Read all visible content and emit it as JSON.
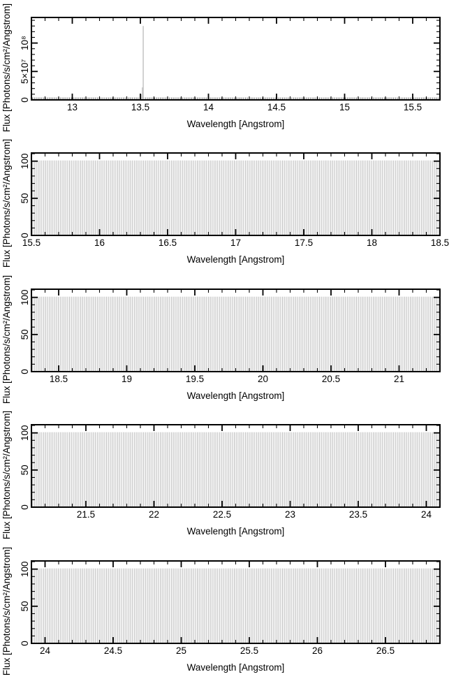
{
  "figure": {
    "background": "#ffffff",
    "frame_color": "#000000",
    "comb_color": "#c0c0c0",
    "comb_strip_color": "#7d7d7d",
    "text_color": "#000000",
    "panel_count": 5
  },
  "chart_data": [
    {
      "type": "line-spectrum",
      "xlabel": "Wavelength [Angstrom]",
      "ylabel": "Flux [Photons/s/cm²/Angstrom]",
      "xlim": [
        12.7,
        15.7
      ],
      "xticks": [
        {
          "value": 13,
          "label": "13"
        },
        {
          "value": 13.5,
          "label": "13.5"
        },
        {
          "value": 14,
          "label": "14"
        },
        {
          "value": 14.5,
          "label": "14.5"
        },
        {
          "value": 15,
          "label": "15"
        },
        {
          "value": 15.5,
          "label": "15.5"
        }
      ],
      "xtick_minor_step": 0.1,
      "ylim": [
        0,
        145000000
      ],
      "yticks": [
        {
          "value": 0,
          "label": "0"
        },
        {
          "value": 50000000,
          "label": "5×10⁷"
        },
        {
          "value": 100000000,
          "label": "10⁸"
        }
      ],
      "ytick_minor_step": 10000000,
      "grid": false,
      "comb": {
        "height": 100,
        "spacing_angstrom": 0.0136
      },
      "emission_lines": [
        {
          "wavelength": 13.5,
          "flux": 5000000
        },
        {
          "wavelength": 13.506,
          "flux": 10000000
        },
        {
          "wavelength": 13.515,
          "flux": 22000000
        },
        {
          "wavelength": 13.521,
          "flux": 130000000
        }
      ]
    },
    {
      "type": "line-spectrum",
      "xlabel": "Wavelength [Angstrom]",
      "ylabel": "Flux [Photons/s/cm²/Angstrom]",
      "xlim": [
        15.5,
        18.5
      ],
      "xticks": [
        {
          "value": 15.5,
          "label": "15.5"
        },
        {
          "value": 16,
          "label": "16"
        },
        {
          "value": 16.5,
          "label": "16.5"
        },
        {
          "value": 17,
          "label": "17"
        },
        {
          "value": 17.5,
          "label": "17.5"
        },
        {
          "value": 18,
          "label": "18"
        },
        {
          "value": 18.5,
          "label": "18.5"
        }
      ],
      "xtick_minor_step": 0.1,
      "ylim": [
        0,
        111
      ],
      "yticks": [
        {
          "value": 0,
          "label": "0"
        },
        {
          "value": 50,
          "label": "50"
        },
        {
          "value": 100,
          "label": "100"
        }
      ],
      "ytick_minor_step": 10,
      "grid": false,
      "comb": {
        "height": 100,
        "spacing_angstrom": 0.0136
      },
      "emission_lines": []
    },
    {
      "type": "line-spectrum",
      "xlabel": "Wavelength [Angstrom]",
      "ylabel": "Flux [Photons/s/cm²/Angstrom]",
      "xlim": [
        18.3,
        21.3
      ],
      "xticks": [
        {
          "value": 18.5,
          "label": "18.5"
        },
        {
          "value": 19,
          "label": "19"
        },
        {
          "value": 19.5,
          "label": "19.5"
        },
        {
          "value": 20,
          "label": "20"
        },
        {
          "value": 20.5,
          "label": "20.5"
        },
        {
          "value": 21,
          "label": "21"
        }
      ],
      "xtick_minor_step": 0.1,
      "ylim": [
        0,
        111
      ],
      "yticks": [
        {
          "value": 0,
          "label": "0"
        },
        {
          "value": 50,
          "label": "50"
        },
        {
          "value": 100,
          "label": "100"
        }
      ],
      "ytick_minor_step": 10,
      "grid": false,
      "comb": {
        "height": 100,
        "spacing_angstrom": 0.0136
      },
      "emission_lines": []
    },
    {
      "type": "line-spectrum",
      "xlabel": "Wavelength [Angstrom]",
      "ylabel": "Flux [Photons/s/cm²/Angstrom]",
      "xlim": [
        21.1,
        24.1
      ],
      "xticks": [
        {
          "value": 21.5,
          "label": "21.5"
        },
        {
          "value": 22,
          "label": "22"
        },
        {
          "value": 22.5,
          "label": "22.5"
        },
        {
          "value": 23,
          "label": "23"
        },
        {
          "value": 23.5,
          "label": "23.5"
        },
        {
          "value": 24,
          "label": "24"
        }
      ],
      "xtick_minor_step": 0.1,
      "ylim": [
        0,
        111
      ],
      "yticks": [
        {
          "value": 0,
          "label": "0"
        },
        {
          "value": 50,
          "label": "50"
        },
        {
          "value": 100,
          "label": "100"
        }
      ],
      "ytick_minor_step": 10,
      "grid": false,
      "comb": {
        "height": 100,
        "spacing_angstrom": 0.0136
      },
      "emission_lines": []
    },
    {
      "type": "line-spectrum",
      "xlabel": "Wavelength [Angstrom]",
      "ylabel": "Flux [Photons/s/cm²/Angstrom]",
      "xlim": [
        23.9,
        26.9
      ],
      "xticks": [
        {
          "value": 24,
          "label": "24"
        },
        {
          "value": 24.5,
          "label": "24.5"
        },
        {
          "value": 25,
          "label": "25"
        },
        {
          "value": 25.5,
          "label": "25.5"
        },
        {
          "value": 26,
          "label": "26"
        },
        {
          "value": 26.5,
          "label": "26.5"
        }
      ],
      "xtick_minor_step": 0.1,
      "ylim": [
        0,
        111
      ],
      "yticks": [
        {
          "value": 0,
          "label": "0"
        },
        {
          "value": 50,
          "label": "50"
        },
        {
          "value": 100,
          "label": "100"
        }
      ],
      "ytick_minor_step": 10,
      "grid": false,
      "comb": {
        "height": 100,
        "spacing_angstrom": 0.0136
      },
      "emission_lines": []
    }
  ]
}
